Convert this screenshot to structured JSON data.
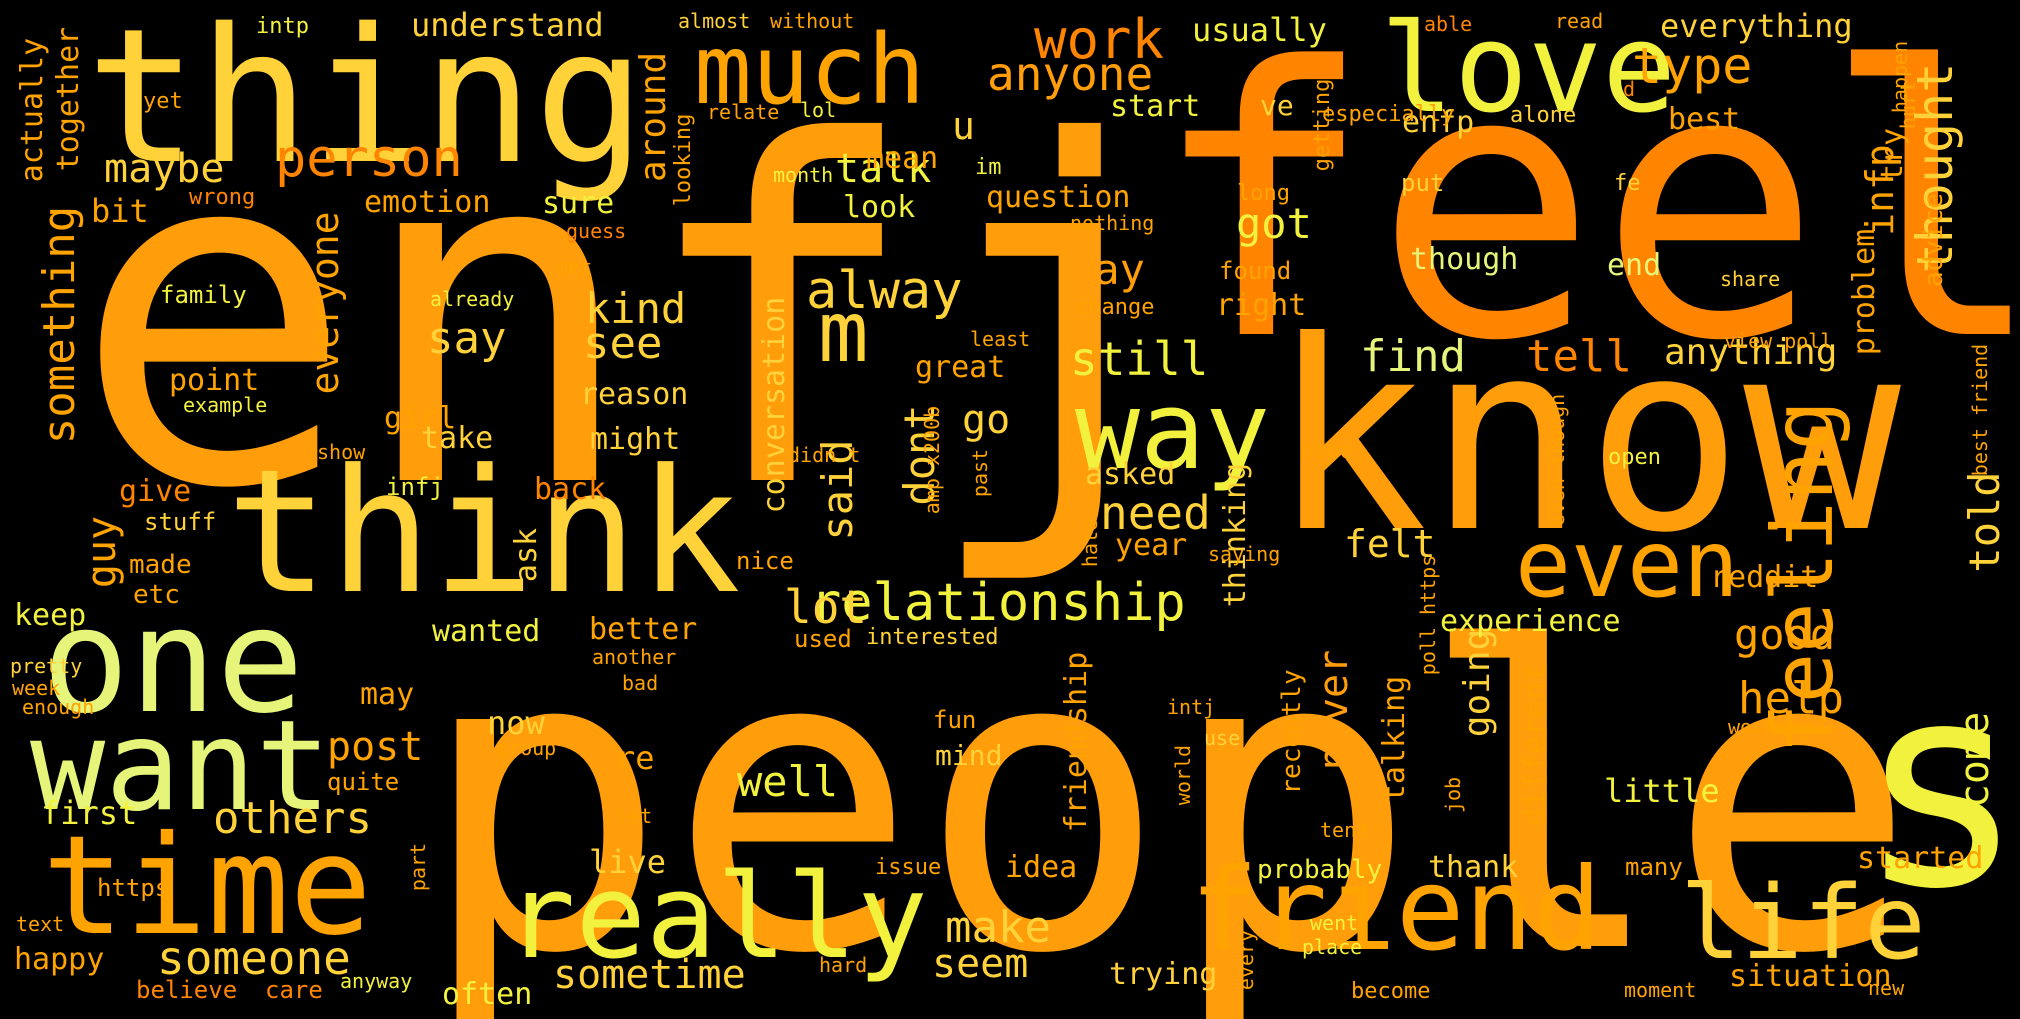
{
  "palette": [
    "#FF9D0A",
    "#FF8400",
    "#FFA300",
    "#FFD23A",
    "#F2F23E",
    "#E6F57A",
    "#FFB21F",
    "#FF7A00"
  ],
  "words": [
    {
      "text": "enfj",
      "color": "#FF9D0A"
    },
    {
      "text": "feel",
      "color": "#FF8400"
    },
    {
      "text": "people",
      "color": "#FF9D0A"
    },
    {
      "text": "s",
      "color": "#F2F23E"
    },
    {
      "text": "know",
      "color": "#FF9D0A"
    },
    {
      "text": "thing",
      "color": "#FFD23A"
    },
    {
      "text": "think",
      "color": "#FFD23A"
    },
    {
      "text": "love",
      "color": "#F2F23E"
    },
    {
      "text": "much",
      "color": "#FFA300"
    },
    {
      "text": "one",
      "color": "#E6F57A"
    },
    {
      "text": "way",
      "color": "#F2F23E"
    },
    {
      "text": "time",
      "color": "#FFA300"
    },
    {
      "text": "want",
      "color": "#E6F57A"
    },
    {
      "text": "really",
      "color": "#F2F23E"
    },
    {
      "text": "friend",
      "color": "#FFA300"
    },
    {
      "text": "life",
      "color": "#FFD23A"
    },
    {
      "text": "even",
      "color": "#FFA300"
    },
    {
      "text": "feeling",
      "color": "#FFA300"
    },
    {
      "text": "m",
      "color": "#FFD23A"
    },
    {
      "text": "relationship",
      "color": "#F2F23E"
    },
    {
      "text": "person",
      "color": "#FF8400"
    },
    {
      "text": "someone",
      "color": "#FFD23A"
    },
    {
      "text": "type",
      "color": "#FFA300"
    },
    {
      "text": "work",
      "color": "#FF8400"
    },
    {
      "text": "anyone",
      "color": "#FF9D0A"
    },
    {
      "text": "alway",
      "color": "#FFD23A"
    },
    {
      "text": "thought",
      "color": "#FFD23A"
    },
    {
      "text": "something",
      "color": "#FFA300"
    },
    {
      "text": "everyone",
      "color": "#FFA300"
    },
    {
      "text": "others",
      "color": "#FFD23A"
    },
    {
      "text": "see",
      "color": "#FFD23A"
    },
    {
      "text": "say",
      "color": "#FFD23A"
    },
    {
      "text": "maybe",
      "color": "#FFD23A"
    },
    {
      "text": "talk",
      "color": "#F2F23E"
    },
    {
      "text": "kind",
      "color": "#FFD23A"
    },
    {
      "text": "got",
      "color": "#F2F23E"
    },
    {
      "text": "day",
      "color": "#FF9D0A"
    },
    {
      "text": "still",
      "color": "#F2F23E"
    },
    {
      "text": "find",
      "color": "#E6F57A"
    },
    {
      "text": "tell",
      "color": "#FF8400"
    },
    {
      "text": "need",
      "color": "#FFD23A"
    },
    {
      "text": "guy",
      "color": "#FFA300"
    },
    {
      "text": "lot",
      "color": "#FFD23A"
    },
    {
      "text": "said",
      "color": "#FFD23A"
    },
    {
      "text": "good",
      "color": "#FFA300"
    },
    {
      "text": "told",
      "color": "#FFD23A"
    },
    {
      "text": "post",
      "color": "#FFA300"
    },
    {
      "text": "well",
      "color": "#F2F23E"
    },
    {
      "text": "help",
      "color": "#FFA300"
    },
    {
      "text": "come",
      "color": "#F2F23E"
    },
    {
      "text": "make",
      "color": "#FFD23A"
    },
    {
      "text": "seem",
      "color": "#FFD23A"
    },
    {
      "text": "sometime",
      "color": "#FFD23A"
    },
    {
      "text": "never",
      "color": "#FF9D0A"
    },
    {
      "text": "dont",
      "color": "#FFD23A"
    },
    {
      "text": "infp",
      "color": "#FFA300"
    },
    {
      "text": "anything",
      "color": "#FFD23A"
    },
    {
      "text": "go",
      "color": "#FFD23A"
    },
    {
      "text": "u",
      "color": "#FFD23A"
    },
    {
      "text": "felt",
      "color": "#FFD23A"
    },
    {
      "text": "going",
      "color": "#FFD23A"
    },
    {
      "text": "around",
      "color": "#FFA300"
    },
    {
      "text": "everything",
      "color": "#FFD23A"
    },
    {
      "text": "understand",
      "color": "#FFD23A"
    },
    {
      "text": "usually",
      "color": "#F2F23E"
    },
    {
      "text": "actually",
      "color": "#FFA300"
    },
    {
      "text": "together",
      "color": "#FFA300"
    },
    {
      "text": "bit",
      "color": "#FFA300"
    },
    {
      "text": "emotion",
      "color": "#FFA300"
    },
    {
      "text": "sure",
      "color": "#F2F23E"
    },
    {
      "text": "look",
      "color": "#F2F23E"
    },
    {
      "text": "question",
      "color": "#FFA300"
    },
    {
      "text": "mean",
      "color": "#FFA300"
    },
    {
      "text": "start",
      "color": "#F2F23E"
    },
    {
      "text": "ve",
      "color": "#FFD23A"
    },
    {
      "text": "enfp",
      "color": "#FFD23A"
    },
    {
      "text": "best",
      "color": "#FFA300"
    },
    {
      "text": "problem",
      "color": "#FFA300"
    },
    {
      "text": "advice",
      "color": "#FFA300"
    },
    {
      "text": "try",
      "color": "#FFA300"
    },
    {
      "text": "though",
      "color": "#E6F57A"
    },
    {
      "text": "end",
      "color": "#E6F57A"
    },
    {
      "text": "right",
      "color": "#FFA300"
    },
    {
      "text": "found",
      "color": "#FFA300"
    },
    {
      "text": "change",
      "color": "#FFA300"
    },
    {
      "text": "family",
      "color": "#F2F23E"
    },
    {
      "text": "point",
      "color": "#FFA300"
    },
    {
      "text": "example",
      "color": "#F2F23E"
    },
    {
      "text": "girl",
      "color": "#FFA300"
    },
    {
      "text": "take",
      "color": "#FFD23A"
    },
    {
      "text": "reason",
      "color": "#FFD23A"
    },
    {
      "text": "might",
      "color": "#FFD23A"
    },
    {
      "text": "great",
      "color": "#FFA300"
    },
    {
      "text": "conversation",
      "color": "#FFD23A"
    },
    {
      "text": "give",
      "color": "#FF8400"
    },
    {
      "text": "back",
      "color": "#FF8400"
    },
    {
      "text": "asked",
      "color": "#FFD23A"
    },
    {
      "text": "year",
      "color": "#FFA300"
    },
    {
      "text": "thinking",
      "color": "#FFD23A"
    },
    {
      "text": "reddit",
      "color": "#FFA300"
    },
    {
      "text": "experience",
      "color": "#F2F23E"
    },
    {
      "text": "made",
      "color": "#FFA300"
    },
    {
      "text": "etc",
      "color": "#FFA300"
    },
    {
      "text": "ask",
      "color": "#FFD23A"
    },
    {
      "text": "keep",
      "color": "#F2F23E"
    },
    {
      "text": "wanted",
      "color": "#F2F23E"
    },
    {
      "text": "better",
      "color": "#FFA300"
    },
    {
      "text": "used",
      "color": "#FFA300"
    },
    {
      "text": "interested",
      "color": "#FFD23A"
    },
    {
      "text": "stuff",
      "color": "#FFD23A"
    },
    {
      "text": "infj",
      "color": "#F2F23E"
    },
    {
      "text": "nice",
      "color": "#FFA300"
    },
    {
      "text": "may",
      "color": "#FFA300"
    },
    {
      "text": "now",
      "color": "#FFD23A"
    },
    {
      "text": "re",
      "color": "#FFA300"
    },
    {
      "text": "friendship",
      "color": "#FFA300"
    },
    {
      "text": "different",
      "color": "#FFA300"
    },
    {
      "text": "talking",
      "color": "#FFA300"
    },
    {
      "text": "recently",
      "color": "#FFA300"
    },
    {
      "text": "little",
      "color": "#F2F23E"
    },
    {
      "text": "first",
      "color": "#F2F23E"
    },
    {
      "text": "quite",
      "color": "#FFA300"
    },
    {
      "text": "mind",
      "color": "#FFD23A"
    },
    {
      "text": "fun",
      "color": "#FFA300"
    },
    {
      "text": "live",
      "color": "#FFD23A"
    },
    {
      "text": "idea",
      "color": "#FFA300"
    },
    {
      "text": "thank",
      "color": "#FFD23A"
    },
    {
      "text": "probably",
      "color": "#F2F23E"
    },
    {
      "text": "started",
      "color": "#FFA300"
    },
    {
      "text": "many",
      "color": "#FFA300"
    },
    {
      "text": "trying",
      "color": "#FFD23A"
    },
    {
      "text": "situation",
      "color": "#FFA300"
    },
    {
      "text": "often",
      "color": "#F2F23E"
    },
    {
      "text": "happy",
      "color": "#FFA300"
    },
    {
      "text": "https",
      "color": "#FFA300"
    },
    {
      "text": "believe",
      "color": "#FF8400"
    },
    {
      "text": "care",
      "color": "#FF8400"
    },
    {
      "text": "anyway",
      "color": "#F2F23E"
    },
    {
      "text": "text",
      "color": "#FFA300"
    },
    {
      "text": "pretty",
      "color": "#FFD23A"
    },
    {
      "text": "week",
      "color": "#FFA300"
    },
    {
      "text": "enough",
      "color": "#FFA300"
    },
    {
      "text": "intp",
      "color": "#F2F23E"
    },
    {
      "text": "almost",
      "color": "#FFD23A"
    },
    {
      "text": "without",
      "color": "#FFA300"
    },
    {
      "text": "able",
      "color": "#FF8400"
    },
    {
      "text": "read",
      "color": "#FFA300"
    },
    {
      "text": "yet",
      "color": "#FFA300"
    },
    {
      "text": "relate",
      "color": "#FFA300"
    },
    {
      "text": "lol",
      "color": "#F2F23E"
    },
    {
      "text": "especially",
      "color": "#FFA300"
    },
    {
      "text": "alone",
      "color": "#FFD23A"
    },
    {
      "text": "getting",
      "color": "#FFA300"
    },
    {
      "text": "wrong",
      "color": "#FF8400"
    },
    {
      "text": "looking",
      "color": "#FFA300"
    },
    {
      "text": "im",
      "color": "#F2F23E"
    },
    {
      "text": "month",
      "color": "#F2F23E"
    },
    {
      "text": "guess",
      "color": "#FF8400"
    },
    {
      "text": "nothing",
      "color": "#FFA300"
    },
    {
      "text": "long",
      "color": "#FFA300"
    },
    {
      "text": "put",
      "color": "#FFD23A"
    },
    {
      "text": "fe",
      "color": "#FFD23A"
    },
    {
      "text": "d",
      "color": "#FF8400"
    },
    {
      "text": "happen",
      "color": "#FFA300"
    },
    {
      "text": "hurt",
      "color": "#FFA300"
    },
    {
      "text": "share",
      "color": "#FFD23A"
    },
    {
      "text": "met",
      "color": "#FFA300"
    },
    {
      "text": "already",
      "color": "#F2F23E"
    },
    {
      "text": "least",
      "color": "#FFA300"
    },
    {
      "text": "didn t",
      "color": "#FFA300"
    },
    {
      "text": "amp x200b",
      "color": "#FFA300"
    },
    {
      "text": "past",
      "color": "#FFA300"
    },
    {
      "text": "show",
      "color": "#FFA300"
    },
    {
      "text": "hope",
      "color": "#FFA300"
    },
    {
      "text": "hate",
      "color": "#FFA300"
    },
    {
      "text": "saying",
      "color": "#FFA300"
    },
    {
      "text": "open",
      "color": "#F2F23E"
    },
    {
      "text": "poll https",
      "color": "#FFA300"
    },
    {
      "text": "even though",
      "color": "#FFA300"
    },
    {
      "text": "view poll",
      "color": "#FFA300"
    },
    {
      "text": "best friend",
      "color": "#FFA300"
    },
    {
      "text": "another",
      "color": "#FFA300"
    },
    {
      "text": "bad",
      "color": "#FFA300"
    },
    {
      "text": "intj",
      "color": "#FFA300"
    },
    {
      "text": "use",
      "color": "#FFD23A"
    },
    {
      "text": "world",
      "color": "#FFA300"
    },
    {
      "text": "group",
      "color": "#FFA300"
    },
    {
      "text": "job",
      "color": "#FFA300"
    },
    {
      "text": "tend",
      "color": "#FFA300"
    },
    {
      "text": "working",
      "color": "#FFA300"
    },
    {
      "text": "let",
      "color": "#FFA300"
    },
    {
      "text": "part",
      "color": "#FFA300"
    },
    {
      "text": "issue",
      "color": "#FFA300"
    },
    {
      "text": "went",
      "color": "#F2F23E"
    },
    {
      "text": "place",
      "color": "#F2F23E"
    },
    {
      "text": "every",
      "color": "#FFA300"
    },
    {
      "text": "hard",
      "color": "#FFA300"
    },
    {
      "text": "become",
      "color": "#FFA300"
    },
    {
      "text": "moment",
      "color": "#FFA300"
    },
    {
      "text": "new",
      "color": "#FFA300"
    }
  ]
}
